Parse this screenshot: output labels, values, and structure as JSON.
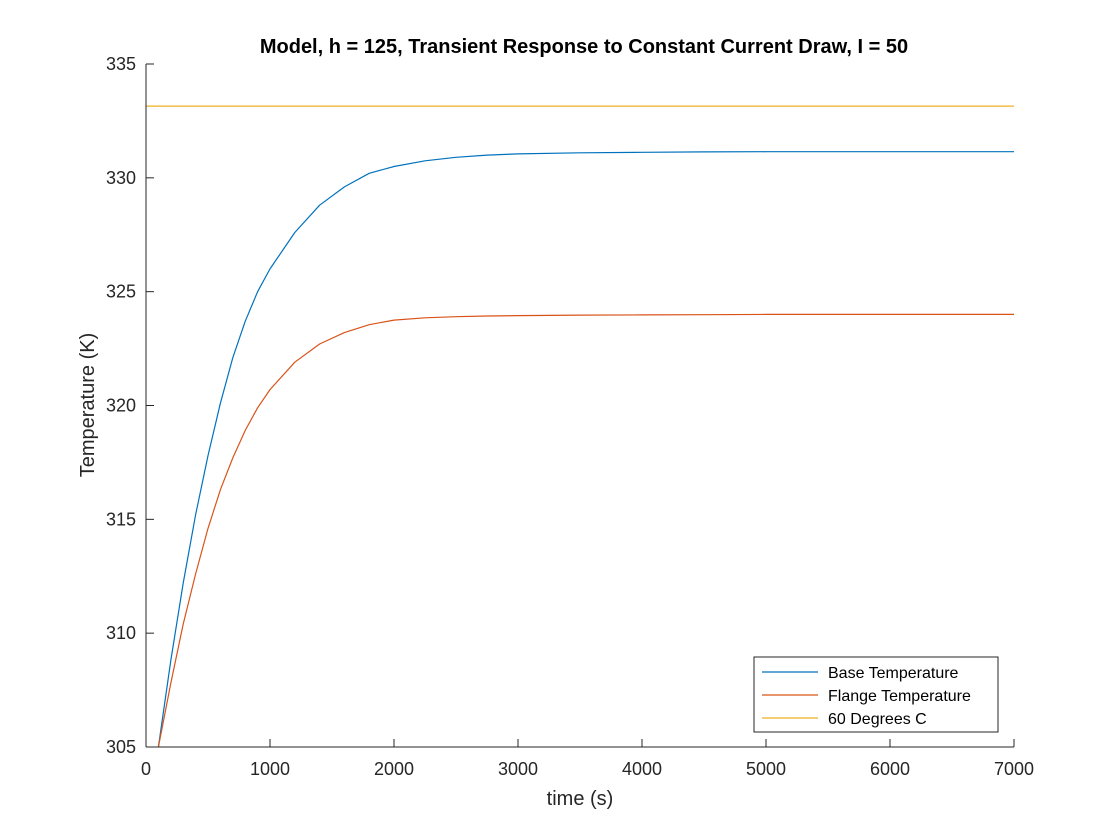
{
  "chart_data": {
    "type": "line",
    "title": "Model, h = 125, Transient Response to Constant Current Draw, I = 50",
    "xlabel": "time (s)",
    "ylabel": "Temperature (K)",
    "xlim": [
      0,
      7000
    ],
    "ylim": [
      305,
      335
    ],
    "xticks": [
      0,
      1000,
      2000,
      3000,
      4000,
      5000,
      6000,
      7000
    ],
    "yticks": [
      305,
      310,
      315,
      320,
      325,
      330,
      335
    ],
    "grid": false,
    "legend_position": "bottom-right",
    "series": [
      {
        "name": "Base Temperature",
        "color": "#0072BD",
        "x": [
          100,
          200,
          300,
          400,
          500,
          600,
          700,
          800,
          900,
          1000,
          1200,
          1400,
          1600,
          1800,
          2000,
          2250,
          2500,
          2750,
          3000,
          3500,
          4000,
          4500,
          5000,
          5500,
          6000,
          6500,
          7000
        ],
        "y": [
          305.0,
          308.8,
          312.2,
          315.2,
          317.8,
          320.1,
          322.1,
          323.7,
          325.0,
          326.0,
          327.6,
          328.8,
          329.6,
          330.2,
          330.5,
          330.75,
          330.9,
          331.0,
          331.05,
          331.1,
          331.12,
          331.14,
          331.15,
          331.15,
          331.15,
          331.15,
          331.15
        ]
      },
      {
        "name": "Flange Temperature",
        "color": "#D95319",
        "x": [
          100,
          200,
          300,
          400,
          500,
          600,
          700,
          800,
          900,
          1000,
          1200,
          1400,
          1600,
          1800,
          2000,
          2250,
          2500,
          2750,
          3000,
          3500,
          4000,
          4500,
          5000,
          5500,
          6000,
          6500,
          7000
        ],
        "y": [
          305.0,
          307.8,
          310.4,
          312.6,
          314.6,
          316.3,
          317.7,
          318.9,
          319.9,
          320.7,
          321.9,
          322.7,
          323.2,
          323.55,
          323.75,
          323.85,
          323.9,
          323.93,
          323.95,
          323.97,
          323.98,
          323.99,
          324.0,
          324.0,
          324.0,
          324.0,
          324.0
        ]
      },
      {
        "name": "60 Degrees C",
        "color": "#EDB120",
        "x": [
          0,
          7000
        ],
        "y": [
          333.15,
          333.15
        ]
      }
    ]
  }
}
